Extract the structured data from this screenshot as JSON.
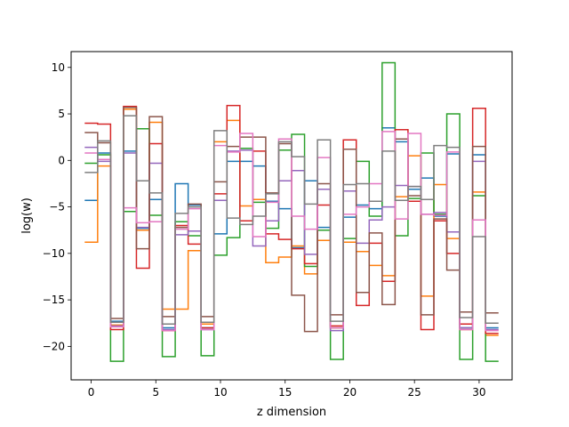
{
  "chart_data": {
    "type": "line",
    "style": "step",
    "title": "",
    "xlabel": "z dimension",
    "ylabel": "log(w)",
    "xlim": [
      -1.55,
      32.55
    ],
    "ylim": [
      -23.6,
      11.7
    ],
    "xticks": [
      0,
      5,
      10,
      15,
      20,
      25,
      30
    ],
    "yticks": [
      10,
      5,
      0,
      -5,
      -10,
      -15,
      -20
    ],
    "grid": false,
    "legend": false,
    "colors": [
      "#1f77b4",
      "#ff7f0e",
      "#2ca02c",
      "#d62728",
      "#9467bd",
      "#8c564b",
      "#e377c2",
      "#7f7f7f"
    ],
    "x": [
      0,
      1,
      2,
      3,
      4,
      5,
      6,
      7,
      8,
      9,
      10,
      11,
      12,
      13,
      14,
      15,
      16,
      17,
      18,
      19,
      20,
      21,
      22,
      23,
      24,
      25,
      26,
      27,
      28,
      29,
      30,
      31
    ],
    "series": [
      {
        "values": [
          -4.3,
          0.8,
          -17.3,
          1.0,
          -7.3,
          -4.2,
          -18.0,
          -2.5,
          -4.8,
          -18.0,
          -7.9,
          -0.1,
          -0.1,
          -0.6,
          -4.4,
          -5.2,
          -9.4,
          -2.2,
          -7.2,
          -18.0,
          -6.1,
          -4.8,
          -5.2,
          3.5,
          2.0,
          -3.1,
          -1.9,
          -6.0,
          0.7,
          -18.0,
          0.6,
          -18.0
        ]
      },
      {
        "values": [
          -8.8,
          -0.6,
          -17.7,
          5.5,
          -7.5,
          4.1,
          -16.0,
          -16.0,
          -9.7,
          -17.6,
          2.0,
          4.3,
          -4.9,
          -4.2,
          -11.0,
          -10.4,
          -9.2,
          -12.2,
          -8.6,
          -18.0,
          -8.8,
          -9.8,
          -11.3,
          -12.4,
          -3.9,
          0.5,
          -14.6,
          -2.6,
          -8.4,
          -18.2,
          -3.4,
          -18.8
        ]
      },
      {
        "values": [
          -0.3,
          0.6,
          -21.6,
          -5.5,
          3.4,
          -5.9,
          -21.1,
          -6.6,
          -8.1,
          -21.0,
          -10.2,
          -8.3,
          1.3,
          -4.5,
          -7.3,
          1.1,
          2.8,
          -11.4,
          -7.5,
          -21.4,
          -8.4,
          -0.1,
          -6.0,
          10.5,
          -8.1,
          -4.1,
          0.8,
          -5.8,
          5.0,
          -21.4,
          -3.8,
          -21.6
        ]
      },
      {
        "values": [
          4.0,
          3.9,
          -18.2,
          5.8,
          -11.6,
          1.8,
          -18.3,
          -7.0,
          -9.0,
          -18.0,
          -3.6,
          5.9,
          -6.5,
          1.0,
          -7.9,
          -8.5,
          -9.5,
          -11.1,
          -4.8,
          -17.8,
          2.2,
          -15.6,
          -8.9,
          -13.0,
          3.3,
          -4.4,
          -18.2,
          -6.5,
          -10.0,
          -17.6,
          5.6,
          -18.6
        ]
      },
      {
        "values": [
          1.4,
          -0.1,
          -17.8,
          0.8,
          -7.2,
          -0.3,
          -18.2,
          -8.0,
          -7.6,
          -18.2,
          -4.3,
          1.0,
          1.1,
          -9.2,
          -6.5,
          -2.2,
          -1.1,
          -10.1,
          -3.1,
          -18.3,
          -3.3,
          -8.9,
          -6.4,
          -5.0,
          -2.7,
          -2.8,
          -5.8,
          -5.6,
          -7.7,
          -18.0,
          -0.1,
          -18.2
        ]
      },
      {
        "values": [
          3.0,
          1.9,
          -17.0,
          5.7,
          -9.5,
          4.7,
          -16.8,
          -7.2,
          -4.7,
          -16.8,
          -2.3,
          1.5,
          2.5,
          2.5,
          -3.5,
          1.8,
          -14.5,
          -18.4,
          -2.5,
          -16.6,
          1.2,
          -14.2,
          -7.8,
          -15.5,
          2.3,
          -3.8,
          -16.6,
          -6.3,
          -11.8,
          -16.3,
          1.5,
          -16.4
        ]
      },
      {
        "values": [
          0.8,
          0.1,
          -17.9,
          -5.1,
          -6.7,
          -6.6,
          -18.3,
          -7.4,
          -5.2,
          -18.2,
          1.6,
          0.9,
          2.9,
          -8.2,
          -4.5,
          2.3,
          -6.0,
          -7.4,
          0.3,
          -18.0,
          -5.8,
          -5.0,
          -2.5,
          3.1,
          -6.3,
          2.9,
          -5.8,
          -5.9,
          0.9,
          -18.2,
          -6.4,
          -18.3
        ]
      },
      {
        "values": [
          -1.3,
          2.1,
          -17.4,
          4.8,
          -2.2,
          -3.5,
          -17.6,
          -5.7,
          -5.0,
          -17.4,
          3.2,
          -6.2,
          -6.9,
          -6.0,
          -3.6,
          2.0,
          0.4,
          -4.7,
          2.2,
          -17.3,
          -2.6,
          -2.5,
          -4.4,
          1.0,
          -4.3,
          -2.8,
          -4.2,
          1.6,
          1.4,
          -16.9,
          -8.2,
          -17.5
        ]
      }
    ]
  }
}
